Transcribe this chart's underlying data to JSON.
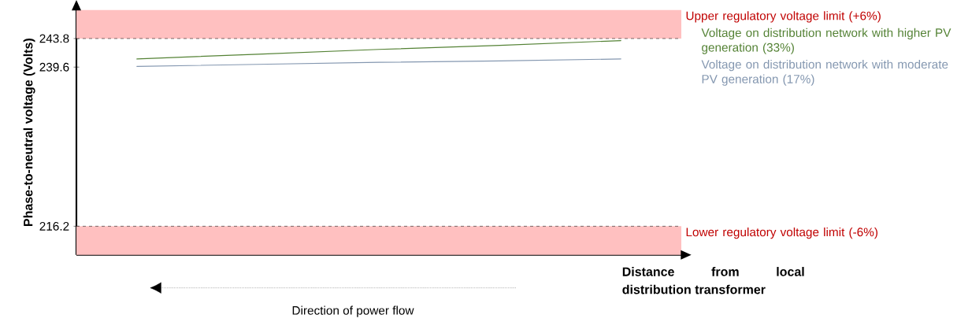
{
  "chart_data": {
    "type": "line",
    "xlabel": "Distance from local distribution transformer",
    "ylabel": "Phase-to-neutral voltage (Volts)",
    "categories": [
      null,
      null,
      null,
      null,
      null
    ],
    "series": [
      {
        "name": "Voltage on distribution network with higher PV generation (33%)",
        "color": "#548235",
        "values": [
          240.8,
          241.5,
          242.2,
          242.8,
          243.5
        ]
      },
      {
        "name": "Voltage on distribution network with moderate PV generation (17%)",
        "color": "#8497b0",
        "values": [
          239.7,
          240.0,
          240.3,
          240.5,
          240.8
        ]
      }
    ],
    "ylim": [
      212,
      248
    ],
    "yticks": [
      216.2,
      239.6,
      243.8
    ],
    "tick_labels": "y",
    "grid": false,
    "marker": "none",
    "ref_lines": [
      {
        "axis": "y",
        "value": 243.8,
        "line_style": "dashed",
        "color": "#000000"
      },
      {
        "axis": "y",
        "value": 216.2,
        "line_style": "dashed",
        "color": "#000000"
      }
    ],
    "bands": [
      {
        "axis": "y",
        "from": 243.8,
        "to": 248,
        "label": "Upper regulatory voltage limit (+6%)",
        "color": "#ffc0c0"
      },
      {
        "axis": "y",
        "from": 212,
        "to": 216.2,
        "label": "Lower regulatory voltage limit (-6%)",
        "color": "#ffc0c0"
      }
    ],
    "annotations": [
      "Direction of power flow"
    ]
  }
}
